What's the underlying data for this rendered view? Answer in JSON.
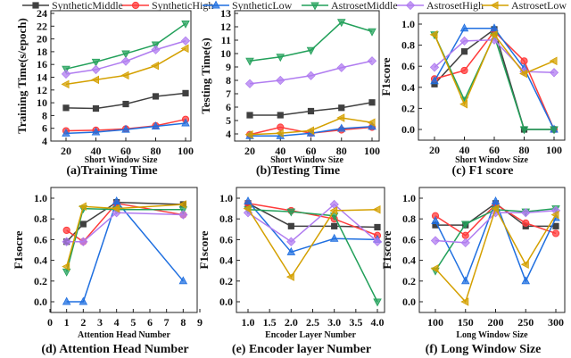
{
  "legend": {
    "position": "top",
    "entries": [
      {
        "name": "SyntheticMiddle",
        "color": "#404040",
        "marker": "square"
      },
      {
        "name": "SyntheticHigh",
        "color": "#ff3b3b",
        "marker": "circle"
      },
      {
        "name": "SyntheticLow",
        "color": "#1f6fe0",
        "marker": "triangle-up"
      },
      {
        "name": "AstrosetMiddle",
        "color": "#22a05a",
        "marker": "triangle-down"
      },
      {
        "name": "AstrosetHigh",
        "color": "#b07cf0",
        "marker": "diamond"
      },
      {
        "name": "AstrosetLow",
        "color": "#d4a000",
        "marker": "triangle-left"
      }
    ]
  },
  "chart_data": [
    {
      "type": "line",
      "title": "(a)Training Time",
      "xlabel": "Short Window Size",
      "ylabel": "Training Time(s/epoch)",
      "x": [
        20,
        40,
        60,
        80,
        100
      ],
      "xticks": [
        "20",
        "40",
        "60",
        "80",
        "100"
      ],
      "xlim": [
        10,
        110
      ],
      "ylim": [
        4,
        24
      ],
      "yticks": [
        "4",
        "6",
        "8",
        "10",
        "12",
        "14",
        "16",
        "18",
        "20",
        "22",
        "24"
      ],
      "grid": false,
      "series": [
        {
          "name": "SyntheticMiddle",
          "values": [
            9.2,
            9.1,
            9.8,
            11.0,
            11.5
          ]
        },
        {
          "name": "SyntheticHigh",
          "values": [
            5.6,
            5.7,
            5.9,
            6.4,
            7.4
          ]
        },
        {
          "name": "SyntheticLow",
          "values": [
            5.2,
            5.4,
            5.8,
            6.3,
            6.8
          ]
        },
        {
          "name": "AstrosetMiddle",
          "values": [
            15.3,
            16.4,
            17.7,
            19.1,
            22.4
          ]
        },
        {
          "name": "AstrosetHigh",
          "values": [
            14.5,
            15.2,
            16.5,
            18.3,
            19.7
          ]
        },
        {
          "name": "AstrosetLow",
          "values": [
            12.9,
            13.6,
            14.3,
            15.8,
            18.5
          ]
        }
      ]
    },
    {
      "type": "line",
      "title": "(b)Testing Time",
      "xlabel": "Short Window Size",
      "ylabel": "Testing Time(s)",
      "x": [
        20,
        40,
        60,
        80,
        100
      ],
      "xticks": [
        "20",
        "40",
        "60",
        "80",
        "100"
      ],
      "xlim": [
        8,
        110
      ],
      "ylim": [
        3.5,
        13.5
      ],
      "yticks": [
        "4",
        "5",
        "6",
        "7",
        "8",
        "9",
        "10",
        "11",
        "12",
        "13"
      ],
      "grid": false,
      "series": [
        {
          "name": "SyntheticMiddle",
          "values": [
            5.4,
            5.4,
            5.7,
            5.95,
            6.35
          ]
        },
        {
          "name": "SyntheticHigh",
          "values": [
            3.95,
            4.5,
            4.05,
            4.3,
            4.5
          ]
        },
        {
          "name": "SyntheticLow",
          "values": [
            3.85,
            3.85,
            4.05,
            4.4,
            4.55
          ]
        },
        {
          "name": "AstrosetMiddle",
          "values": [
            9.45,
            9.75,
            10.25,
            12.35,
            11.65
          ]
        },
        {
          "name": "AstrosetHigh",
          "values": [
            7.75,
            8.0,
            8.35,
            8.95,
            9.45
          ]
        },
        {
          "name": "AstrosetLow",
          "values": [
            3.95,
            4.05,
            4.25,
            5.2,
            4.85
          ]
        }
      ]
    },
    {
      "type": "line",
      "title": "(c) F1 score",
      "xlabel": "Short Window Size",
      "ylabel": "F1score",
      "x": [
        20,
        40,
        60,
        80,
        100
      ],
      "xticks": [
        "20",
        "40",
        "60",
        "80",
        "100"
      ],
      "xlim": [
        9,
        109
      ],
      "ylim": [
        -0.1,
        1.1
      ],
      "yticks": [
        "0.0",
        "0.2",
        "0.4",
        "0.6",
        "0.8",
        "1.0"
      ],
      "grid": false,
      "series": [
        {
          "name": "SyntheticMiddle",
          "values": [
            0.43,
            0.74,
            0.95,
            0.0,
            0.0
          ]
        },
        {
          "name": "SyntheticHigh",
          "values": [
            0.48,
            0.56,
            0.93,
            0.65,
            0.0
          ]
        },
        {
          "name": "SyntheticLow",
          "values": [
            0.46,
            0.96,
            0.96,
            0.58,
            0.0
          ]
        },
        {
          "name": "AstrosetMiddle",
          "values": [
            0.9,
            0.28,
            0.89,
            0.0,
            0.0
          ]
        },
        {
          "name": "AstrosetHigh",
          "values": [
            0.59,
            0.84,
            0.85,
            0.55,
            0.54
          ]
        },
        {
          "name": "AstrosetLow",
          "values": [
            0.9,
            0.24,
            0.9,
            0.53,
            0.65
          ]
        }
      ]
    },
    {
      "type": "line",
      "title": "(d) Attention Head Number",
      "xlabel": "Attention Head Number",
      "ylabel": "F1socre",
      "x": [
        1,
        2,
        4,
        8
      ],
      "xticks": [
        "0",
        "1",
        "2",
        "3",
        "4",
        "5",
        "6",
        "7",
        "8",
        "9"
      ],
      "xlim": [
        0,
        9
      ],
      "ylim": [
        -0.1,
        1.1
      ],
      "yticks": [
        "0.0",
        "0.2",
        "0.4",
        "0.6",
        "0.8",
        "1.0"
      ],
      "grid": false,
      "series": [
        {
          "name": "SyntheticMiddle",
          "values": [
            0.58,
            0.75,
            0.96,
            0.94
          ]
        },
        {
          "name": "SyntheticHigh",
          "values": [
            0.69,
            0.58,
            0.95,
            0.84
          ]
        },
        {
          "name": "SyntheticLow",
          "values": [
            0.0,
            0.0,
            0.97,
            0.2
          ]
        },
        {
          "name": "AstrosetMiddle",
          "values": [
            0.29,
            0.9,
            0.89,
            0.89
          ]
        },
        {
          "name": "AstrosetHigh",
          "values": [
            0.58,
            0.58,
            0.86,
            0.84
          ]
        },
        {
          "name": "AstrosetLow",
          "values": [
            0.34,
            0.92,
            0.9,
            0.94
          ]
        }
      ]
    },
    {
      "type": "line",
      "title": "(e) Encoder layer Number",
      "xlabel": "Encoder Layer Number",
      "ylabel": "F1score",
      "x": [
        1,
        2,
        3,
        4
      ],
      "xticks": [
        "1.0",
        "1.5",
        "2.0",
        "2.5",
        "3.0",
        "3.5",
        "4.0"
      ],
      "xlim": [
        0.9,
        4.05
      ],
      "ylim": [
        -0.1,
        1.1
      ],
      "yticks": [
        "0.0",
        "0.2",
        "0.4",
        "0.6",
        "0.8",
        "1.0"
      ],
      "grid": false,
      "series": [
        {
          "name": "SyntheticMiddle",
          "values": [
            0.95,
            0.73,
            0.73,
            0.72
          ]
        },
        {
          "name": "SyntheticHigh",
          "values": [
            0.95,
            0.88,
            0.8,
            0.64
          ]
        },
        {
          "name": "SyntheticLow",
          "values": [
            0.97,
            0.48,
            0.61,
            0.6
          ]
        },
        {
          "name": "AstrosetMiddle",
          "values": [
            0.89,
            0.87,
            0.83,
            0.0
          ]
        },
        {
          "name": "AstrosetHigh",
          "values": [
            0.86,
            0.58,
            0.94,
            0.58
          ]
        },
        {
          "name": "AstrosetLow",
          "values": [
            0.9,
            0.24,
            0.88,
            0.89
          ]
        }
      ]
    },
    {
      "type": "line",
      "title": "(f) Long Window Size",
      "xlabel": "Long Window Size",
      "ylabel": "F1score",
      "x": [
        100,
        150,
        200,
        250,
        300
      ],
      "xticks": [
        "100",
        "150",
        "200",
        "250",
        "300"
      ],
      "xlim": [
        86,
        313
      ],
      "ylim": [
        -0.1,
        1.1
      ],
      "yticks": [
        "0.0",
        "0.2",
        "0.4",
        "0.6",
        "0.8",
        "1.0"
      ],
      "grid": false,
      "series": [
        {
          "name": "SyntheticMiddle",
          "values": [
            0.74,
            0.74,
            0.95,
            0.73,
            0.73
          ]
        },
        {
          "name": "SyntheticHigh",
          "values": [
            0.83,
            0.64,
            0.94,
            0.76,
            0.66
          ]
        },
        {
          "name": "SyntheticLow",
          "values": [
            0.78,
            0.2,
            0.97,
            0.2,
            0.81
          ]
        },
        {
          "name": "AstrosetMiddle",
          "values": [
            0.3,
            0.75,
            0.89,
            0.87,
            0.9
          ]
        },
        {
          "name": "AstrosetHigh",
          "values": [
            0.59,
            0.57,
            0.86,
            0.86,
            0.88
          ]
        },
        {
          "name": "AstrosetLow",
          "values": [
            0.32,
            0.0,
            0.9,
            0.36,
            0.84
          ]
        }
      ]
    }
  ]
}
